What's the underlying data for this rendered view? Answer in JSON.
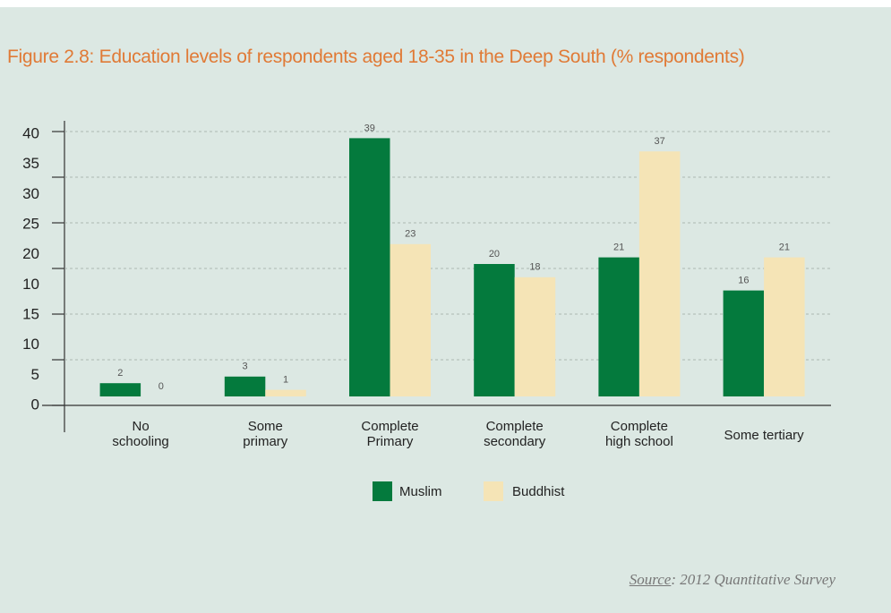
{
  "chart_data": {
    "type": "bar",
    "title": "Figure 2.8: Education levels of respondents aged 18-35 in the Deep South (% respondents)",
    "categories": [
      "No\nschooling",
      "Some\nprimary",
      "Complete\nPrimary",
      "Complete\nsecondary",
      "Complete\nhigh school",
      "Some tertiary"
    ],
    "series": [
      {
        "name": "Muslim",
        "color": "#047a3d",
        "values": [
          2,
          3,
          39,
          20,
          21,
          16
        ]
      },
      {
        "name": "Buddhist",
        "color": "#f5e4b6",
        "values": [
          0,
          1,
          23,
          18,
          37,
          21
        ]
      }
    ],
    "ylim": [
      0,
      40
    ],
    "y_axis_labels": [
      "40",
      "35",
      "30",
      "25",
      "20",
      "10",
      "15",
      "10",
      "5",
      "0"
    ],
    "grid": true,
    "legend": "bottom",
    "source_label": "Source",
    "source_text": ": 2012 Quantitative Survey"
  }
}
